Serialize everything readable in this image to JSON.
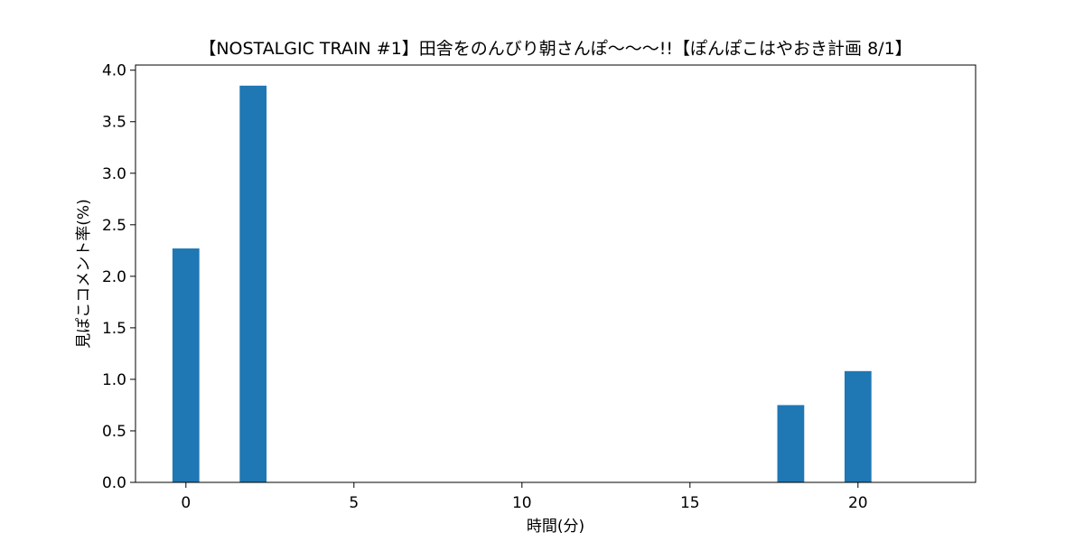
{
  "chart_data": {
    "type": "bar",
    "title": "【NOSTALGIC TRAIN #1】田舎をのんびり朝さんぽ～～～!!【ぽんぽこはやおき計画 8/1】",
    "xlabel": "時間(分)",
    "ylabel": "見ぽこコメント率(%)",
    "x": [
      0,
      2,
      18,
      20
    ],
    "values": [
      2.27,
      3.85,
      0.75,
      1.08
    ],
    "bar_width": 0.8,
    "xlim": [
      -1.5,
      23.5
    ],
    "ylim": [
      0,
      4.05
    ],
    "xticks": [
      0,
      5,
      10,
      15,
      20
    ],
    "yticks": [
      0.0,
      0.5,
      1.0,
      1.5,
      2.0,
      2.5,
      3.0,
      3.5,
      4.0
    ],
    "ytick_labels": [
      "0.0",
      "0.5",
      "1.0",
      "1.5",
      "2.0",
      "2.5",
      "3.0",
      "3.5",
      "4.0"
    ],
    "xtick_labels": [
      "0",
      "5",
      "10",
      "15",
      "20"
    ],
    "bar_color": "#1f77b4",
    "grid": false,
    "legend": "none"
  }
}
